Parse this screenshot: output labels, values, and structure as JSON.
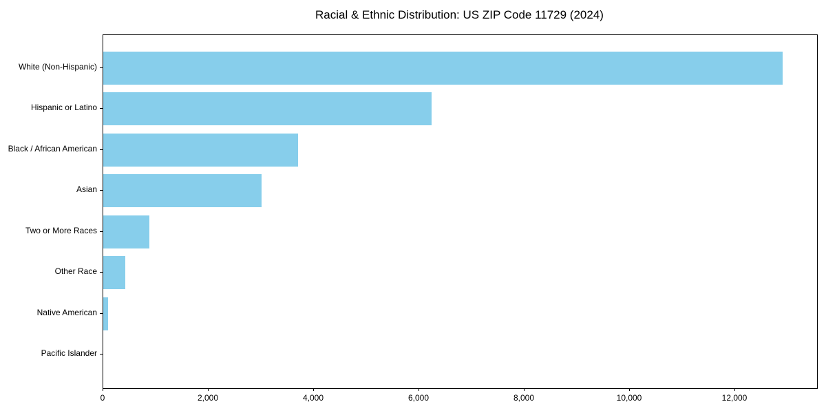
{
  "chart_data": {
    "type": "bar",
    "orientation": "horizontal",
    "title": "Racial & Ethnic Distribution: US ZIP Code 11729 (2024)",
    "categories": [
      "White (Non-Hispanic)",
      "Hispanic or Latino",
      "Black / African American",
      "Asian",
      "Two or More Races",
      "Other Race",
      "Native American",
      "Pacific Islander"
    ],
    "values": [
      12900,
      6230,
      3700,
      3000,
      875,
      420,
      90,
      0
    ],
    "xlabel": "",
    "ylabel": "",
    "xlim": [
      0,
      13550
    ],
    "x_ticks": [
      0,
      2000,
      4000,
      6000,
      8000,
      10000,
      12000
    ],
    "x_tick_labels": [
      "0",
      "2,000",
      "4,000",
      "6,000",
      "8,000",
      "10,000",
      "12,000"
    ],
    "bar_color": "#87CEEB",
    "text_color": "#000000",
    "grid": false,
    "legend": null
  }
}
